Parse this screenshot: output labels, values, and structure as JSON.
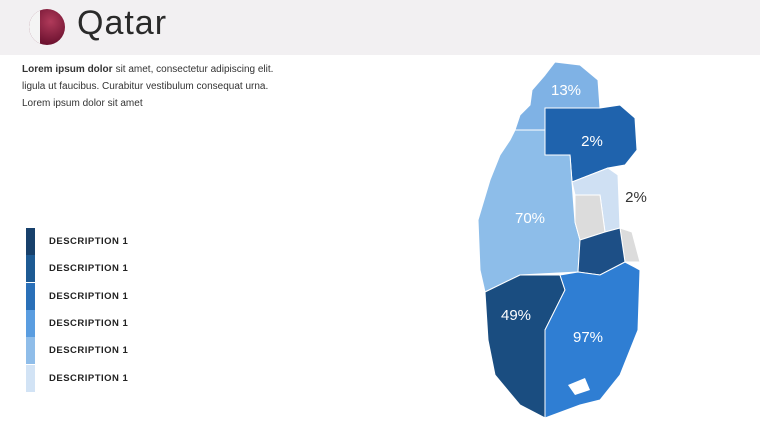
{
  "header": {
    "title": "Qatar"
  },
  "paragraph": {
    "bold": "Lorem ipsum dolor",
    "lines": [
      "sit amet, consectetur adipiscing elit.",
      "ligula ut faucibus. Curabitur vestibulum consequat urna.",
      "Lorem ipsum dolor sit amet"
    ]
  },
  "legend": {
    "items": [
      {
        "label": "DESCRIPTION 1",
        "color": "#17406b"
      },
      {
        "label": "DESCRIPTION 1",
        "color": "#1d5a93"
      },
      {
        "label": "DESCRIPTION 1",
        "color": "#2a70b8"
      },
      {
        "label": "DESCRIPTION 1",
        "color": "#5a9de0"
      },
      {
        "label": "DESCRIPTION 1",
        "color": "#8fbde9"
      },
      {
        "label": "DESCRIPTION 1",
        "color": "#d2e3f5"
      }
    ]
  },
  "regions": [
    {
      "label": "13%",
      "color": "#7fb2e5"
    },
    {
      "label": "2%",
      "color": "#1f63ad"
    },
    {
      "label": "2%",
      "color": "#cfe0f3"
    },
    {
      "label": "70%",
      "color": "#8dbde9"
    },
    {
      "label": "49%",
      "color": "#1a4d80"
    },
    {
      "label": "97%",
      "color": "#2f7ed3"
    }
  ]
}
